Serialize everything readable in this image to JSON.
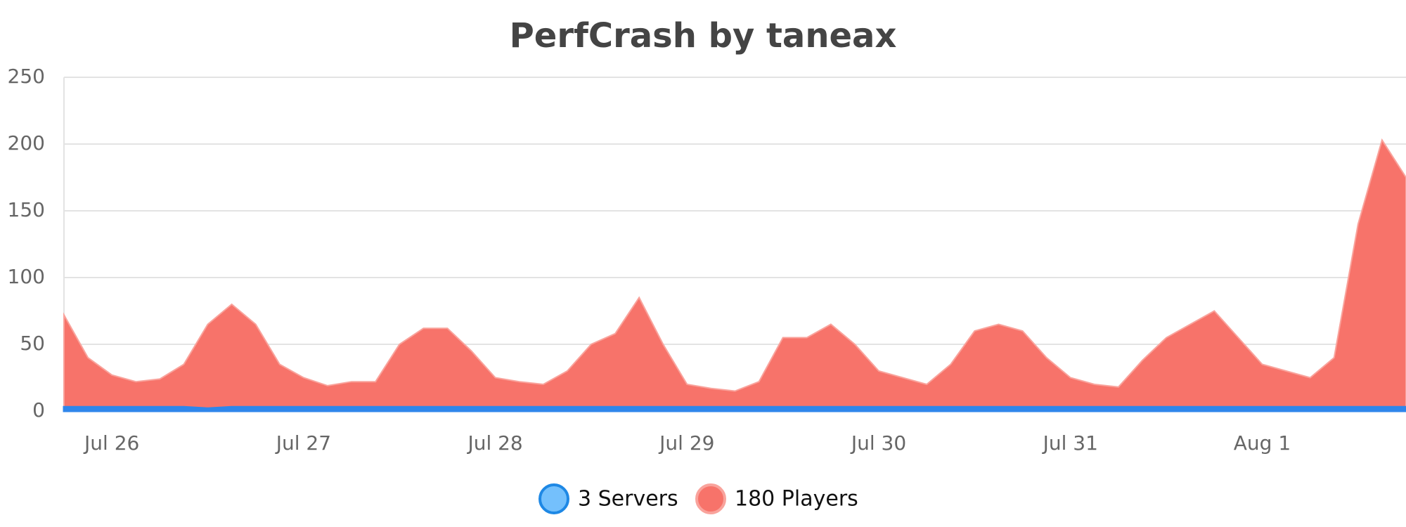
{
  "chart_data": {
    "type": "area",
    "title": "PerfCrash by taneax",
    "categories": [
      null,
      null,
      "Jul 26",
      null,
      null,
      null,
      null,
      null,
      null,
      null,
      "Jul 27",
      null,
      null,
      null,
      null,
      null,
      null,
      null,
      "Jul 28",
      null,
      null,
      null,
      null,
      null,
      null,
      null,
      "Jul 29",
      null,
      null,
      null,
      null,
      null,
      null,
      null,
      "Jul 30",
      null,
      null,
      null,
      null,
      null,
      null,
      null,
      "Jul 31",
      null,
      null,
      null,
      null,
      null,
      null,
      null,
      "Aug 1",
      null,
      null,
      null,
      null,
      null,
      null
    ],
    "series": [
      {
        "name": "3 Servers",
        "color": "#2f86eb",
        "legend_fill": "#74c0fc",
        "legend_stroke": "#1e88e5",
        "values": [
          3,
          3,
          3,
          3,
          3,
          3,
          2,
          3,
          3,
          3,
          3,
          3,
          3,
          3,
          3,
          3,
          3,
          3,
          3,
          3,
          3,
          3,
          3,
          3,
          3,
          3,
          3,
          3,
          3,
          3,
          3,
          3,
          3,
          3,
          3,
          3,
          3,
          3,
          3,
          3,
          3,
          3,
          3,
          3,
          3,
          3,
          3,
          3,
          3,
          3,
          3,
          3,
          3,
          3,
          3,
          3,
          3
        ]
      },
      {
        "name": "180 Players",
        "color": "#f7736a",
        "legend_fill": "#f7736a",
        "legend_stroke": "#f9a39c",
        "values": [
          72,
          40,
          27,
          22,
          24,
          35,
          65,
          80,
          65,
          35,
          25,
          19,
          22,
          22,
          50,
          62,
          62,
          45,
          25,
          22,
          20,
          30,
          50,
          58,
          85,
          50,
          20,
          17,
          15,
          22,
          55,
          55,
          65,
          50,
          30,
          25,
          20,
          35,
          60,
          65,
          60,
          40,
          25,
          20,
          18,
          38,
          55,
          65,
          75,
          55,
          35,
          30,
          25,
          40,
          140,
          203,
          175
        ]
      }
    ],
    "ylim": [
      0,
      250
    ],
    "yticks": [
      0,
      50,
      100,
      150,
      200,
      250
    ],
    "grid": true
  }
}
